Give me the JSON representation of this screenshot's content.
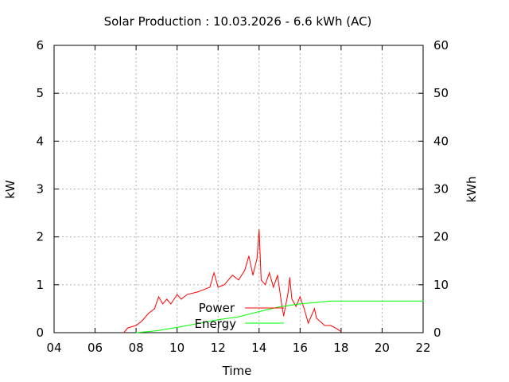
{
  "chart_data": {
    "type": "line",
    "title": "Solar Production : 10.03.2026 - 6.6 kWh (AC)",
    "xlabel": "Time",
    "ylabel": "kW",
    "y2label": "kWh",
    "xlim": [
      4,
      22
    ],
    "ylim": [
      0,
      6
    ],
    "y2lim": [
      0,
      60
    ],
    "xticks": [
      "04",
      "06",
      "08",
      "10",
      "12",
      "14",
      "16",
      "18",
      "20",
      "22"
    ],
    "yticks": [
      "0",
      "1",
      "2",
      "3",
      "4",
      "5",
      "6"
    ],
    "y2ticks": [
      "0",
      "10",
      "20",
      "30",
      "40",
      "50",
      "60"
    ],
    "grid": true,
    "legend_position": "bottom-center",
    "series": [
      {
        "name": "Power",
        "axis": "y",
        "color": "#ff0000",
        "x": [
          7.4,
          7.6,
          8.0,
          8.3,
          8.6,
          8.9,
          9.1,
          9.3,
          9.5,
          9.7,
          10.0,
          10.2,
          10.5,
          11.0,
          11.3,
          11.6,
          11.8,
          12.0,
          12.3,
          12.7,
          13.0,
          13.3,
          13.5,
          13.7,
          13.9,
          14.0,
          14.1,
          14.3,
          14.5,
          14.7,
          14.9,
          15.1,
          15.2,
          15.4,
          15.5,
          15.6,
          15.8,
          16.0,
          16.2,
          16.4,
          16.7,
          16.8,
          17.2,
          17.5,
          17.8,
          18.0
        ],
        "values": [
          0.0,
          0.1,
          0.15,
          0.25,
          0.4,
          0.5,
          0.75,
          0.6,
          0.7,
          0.6,
          0.8,
          0.7,
          0.8,
          0.85,
          0.9,
          0.95,
          1.25,
          0.95,
          1.0,
          1.2,
          1.1,
          1.3,
          1.6,
          1.2,
          1.55,
          2.15,
          1.1,
          1.0,
          1.25,
          0.95,
          1.2,
          0.6,
          0.35,
          0.8,
          1.15,
          0.7,
          0.55,
          0.75,
          0.5,
          0.2,
          0.5,
          0.3,
          0.15,
          0.15,
          0.08,
          0.02
        ]
      },
      {
        "name": "Energy",
        "axis": "y2",
        "color": "#00ff00",
        "x": [
          8.0,
          9.0,
          10.0,
          11.0,
          12.0,
          13.0,
          14.0,
          15.0,
          16.0,
          17.0,
          17.5,
          22.0
        ],
        "values": [
          0,
          0.4,
          1.1,
          1.9,
          2.7,
          3.3,
          4.4,
          5.4,
          6.0,
          6.4,
          6.6,
          6.6
        ]
      }
    ]
  }
}
